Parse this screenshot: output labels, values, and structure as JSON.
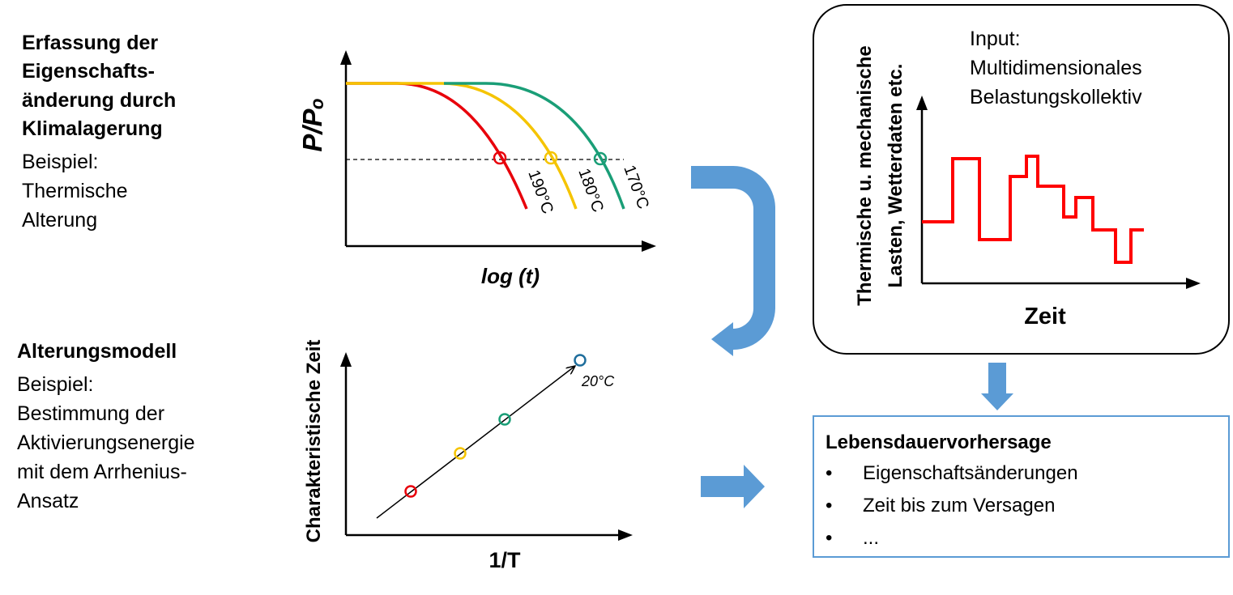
{
  "left_text": {
    "section1": {
      "heading_lines": [
        "Erfassung der",
        "Eigenschafts-",
        "änderung durch",
        "Klimalagerung"
      ],
      "body_lines": [
        "Beispiel:",
        "Thermische",
        "Alterung"
      ]
    },
    "section2": {
      "heading": "Alterungsmodell",
      "body_lines": [
        "Beispiel:",
        "Bestimmung der",
        "Aktivierungsenergie",
        "mit dem Arrhenius-",
        "Ansatz"
      ]
    }
  },
  "chart_data": [
    {
      "type": "line",
      "title": "",
      "xlabel": "log (t)",
      "ylabel": "P/Pₒ",
      "series": [
        {
          "name": "190°C",
          "color": "#e8000b"
        },
        {
          "name": "180°C",
          "color": "#f5c400"
        },
        {
          "name": "170°C",
          "color": "#1a9e77"
        }
      ],
      "threshold_line": "dashed",
      "grid": false
    },
    {
      "type": "scatter",
      "title": "",
      "xlabel": "1/T",
      "ylabel": "Charakteristische Zeit",
      "points": [
        {
          "color": "#e8000b"
        },
        {
          "color": "#f5c400"
        },
        {
          "color": "#1a9e77"
        },
        {
          "color": "#1f6e9c",
          "label": "20°C"
        }
      ],
      "grid": false
    },
    {
      "type": "line",
      "title": "",
      "xlabel": "Zeit",
      "ylabel_lines": [
        "Thermische u. mechanische",
        "Lasten, Wetterdaten etc."
      ],
      "series_color": "#ff0000",
      "grid": false
    }
  ],
  "load_box": {
    "input_lines": [
      "Input:",
      "Multidimensionales",
      "Belastungskollektiv"
    ]
  },
  "lifetime_box": {
    "title": "Lebensdauervorhersage",
    "bullet": "•",
    "items": [
      "Eigenschaftsänderungen",
      "Zeit bis zum Versagen",
      "..."
    ]
  },
  "colors": {
    "arrow_blue": "#5b9bd5",
    "box_border": "#5b9bd5"
  }
}
